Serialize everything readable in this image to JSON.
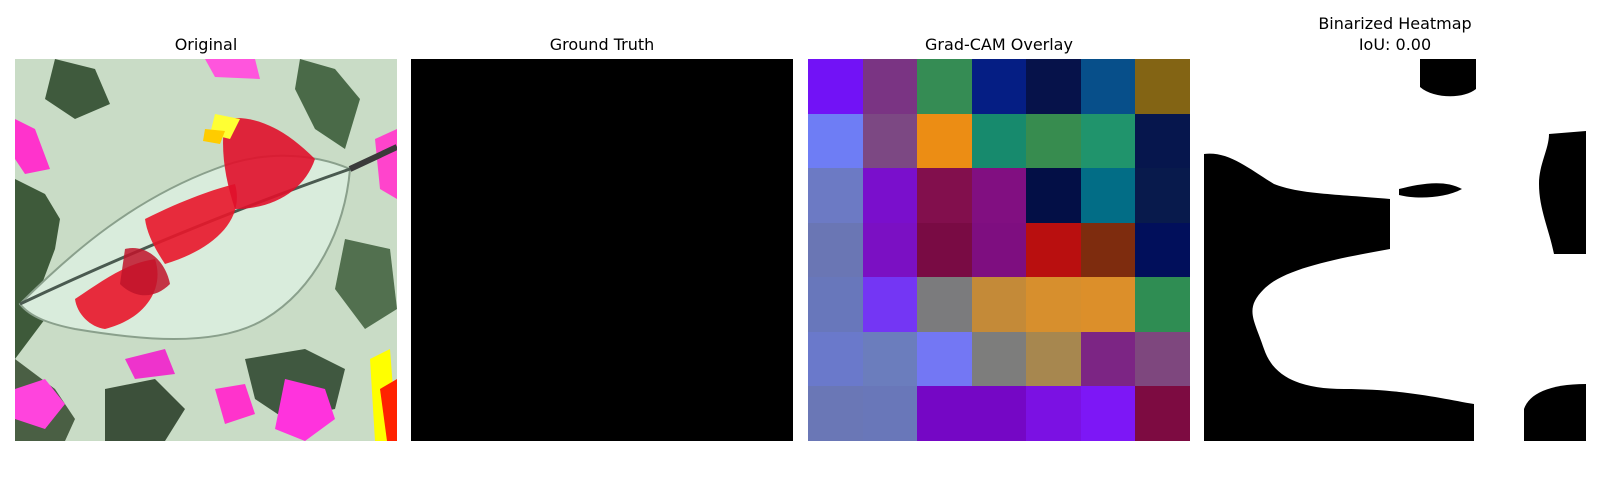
{
  "panels": {
    "original": {
      "title": "Original"
    },
    "ground_truth": {
      "title": "Ground Truth"
    },
    "gradcam": {
      "title": "Grad-CAM Overlay",
      "grid_colors": [
        [
          "#7212f6",
          "#7a3483",
          "#358c54",
          "#051e84",
          "#06124a",
          "#074f8a",
          "#836414"
        ],
        [
          "#6e7df5",
          "#7c4883",
          "#ec8d14",
          "#178a6d",
          "#378c4f",
          "#20946c",
          "#06164d"
        ],
        [
          "#6c7ac4",
          "#7a0fcc",
          "#820f4d",
          "#810f81",
          "#030f46",
          "#026d86",
          "#081a4c"
        ],
        [
          "#6a76b4",
          "#7b10c3",
          "#790b44",
          "#7e0e80",
          "#b90f0f",
          "#7e2c0e",
          "#010f5b"
        ],
        [
          "#6877bb",
          "#7436f4",
          "#7b7b7d",
          "#c48a38",
          "#d78f2d",
          "#dc8f2a",
          "#2f8d53"
        ],
        [
          "#6a79cb",
          "#6b7dbd",
          "#7377f4",
          "#7d7d7c",
          "#a7874f",
          "#7c2584",
          "#7e477e"
        ],
        [
          "#6a77b6",
          "#6977b9",
          "#7507c5",
          "#7507c5",
          "#7b11e3",
          "#7d17f6",
          "#7d0b41"
        ]
      ]
    },
    "binarized": {
      "title_line1": "Binarized Heatmap",
      "title_line2": "IoU: 0.00"
    }
  }
}
